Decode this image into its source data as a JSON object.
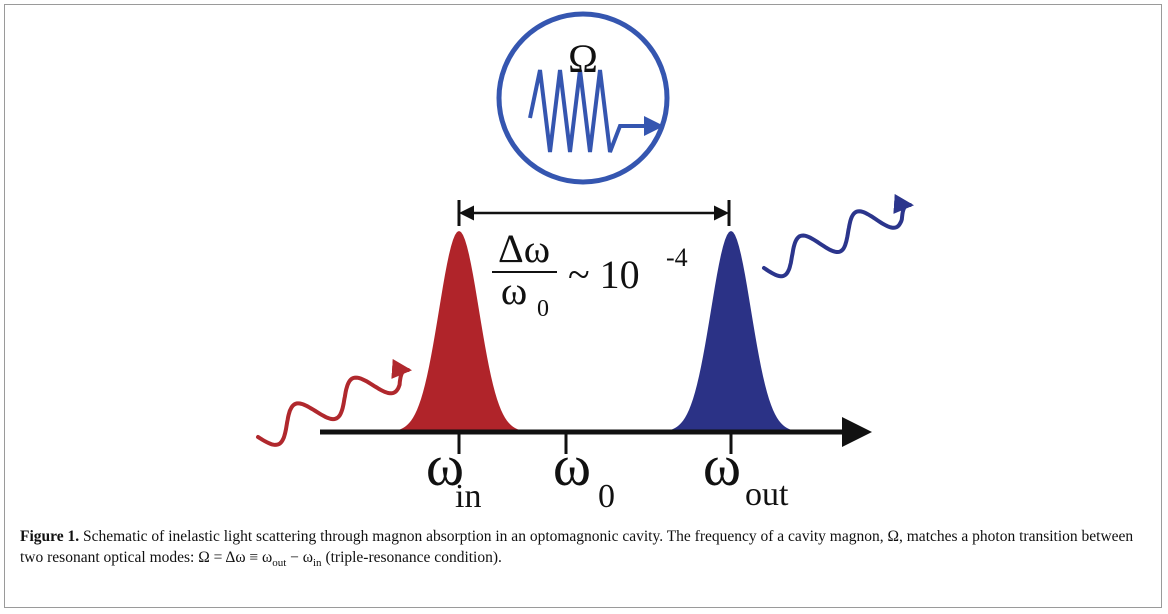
{
  "figure": {
    "magnon_symbol": "Ω",
    "ratio": {
      "numerator": "Δω",
      "denominator": {
        "symbol": "ω",
        "subscript": "0"
      },
      "relation": "~ 10",
      "exponent": "-4"
    },
    "axis_labels": [
      {
        "symbol": "ω",
        "subscript": "in"
      },
      {
        "symbol": "ω",
        "subscript": "0"
      },
      {
        "symbol": "ω",
        "subscript": "out"
      }
    ]
  },
  "caption": {
    "label": "Figure 1.",
    "segments": [
      {
        "text": " Schematic of inelastic light scattering through magnon absorption in an optomagnonic cavity. The frequency of a cavity magnon, Ω, matches a photon transition between two resonant optical modes: Ω = Δω ≡ ω"
      },
      {
        "text": "out",
        "sub": true
      },
      {
        "text": " − ω"
      },
      {
        "text": "in",
        "sub": true
      },
      {
        "text": " (triple-resonance condition)."
      }
    ]
  }
}
